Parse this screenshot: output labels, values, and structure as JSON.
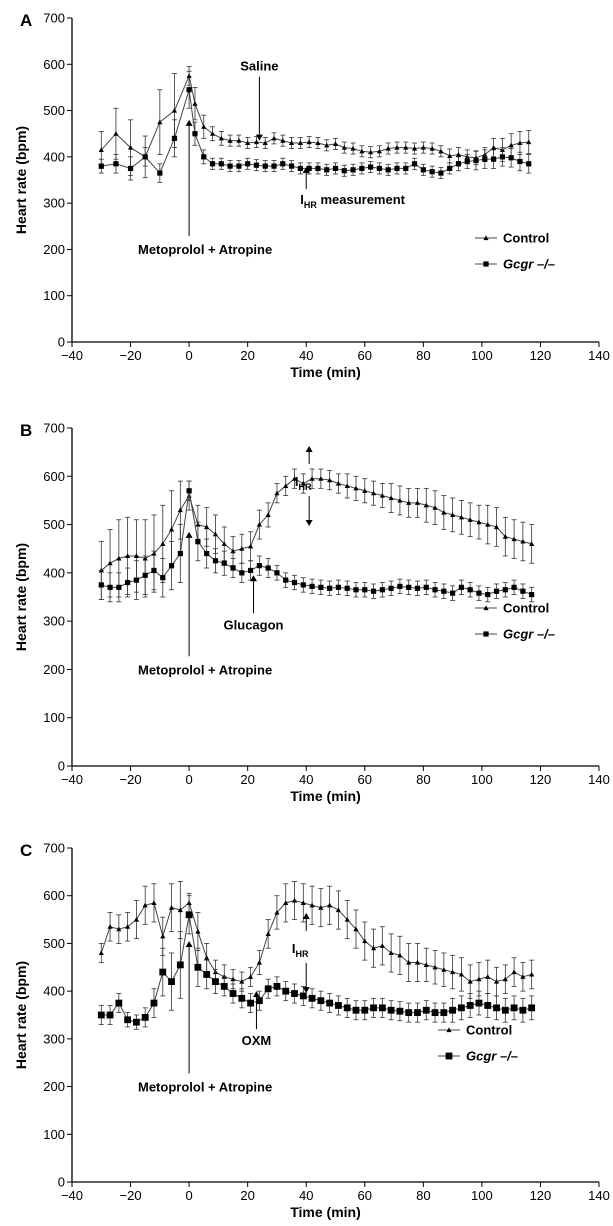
{
  "chart_data": [
    {
      "type": "line",
      "panel_label": "A",
      "xlabel": "Time (min)",
      "ylabel": "Heart rate (bpm)",
      "xlim": [
        -40,
        140
      ],
      "ylim": [
        0,
        700
      ],
      "xticks": [
        -40,
        -20,
        0,
        20,
        40,
        60,
        80,
        100,
        120,
        140
      ],
      "yticks": [
        0,
        100,
        200,
        300,
        400,
        500,
        600,
        700
      ],
      "x_tick_labels": [
        "−40",
        "−20",
        "0",
        "20",
        "40",
        "60",
        "80",
        "100",
        "120",
        "140"
      ],
      "legend_position": "right",
      "annotations": [
        {
          "text": "Saline",
          "x": 24,
          "y": 435,
          "arrow": "down"
        },
        {
          "text": "measurement",
          "x": 40,
          "y": 378,
          "arrow": "up",
          "prefix": "I",
          "sub": "HR"
        },
        {
          "text": "Metoprolol + Atropine",
          "x": 0,
          "y": 480,
          "arrow": "up"
        }
      ],
      "series": [
        {
          "name": "Control",
          "marker": "triangle",
          "x": [
            -30,
            -25,
            -20,
            -15,
            -10,
            -5,
            0,
            2,
            5,
            8,
            11,
            14,
            17,
            20,
            23,
            26,
            29,
            32,
            35,
            38,
            41,
            44,
            47,
            50,
            53,
            56,
            59,
            62,
            65,
            68,
            71,
            74,
            77,
            80,
            83,
            86,
            89,
            92,
            95,
            98,
            101,
            104,
            107,
            110,
            113,
            116
          ],
          "y": [
            415,
            450,
            420,
            400,
            475,
            500,
            575,
            515,
            465,
            450,
            440,
            435,
            435,
            430,
            432,
            430,
            440,
            435,
            430,
            430,
            432,
            430,
            425,
            428,
            420,
            418,
            412,
            410,
            412,
            418,
            420,
            420,
            418,
            420,
            418,
            412,
            402,
            405,
            400,
            398,
            405,
            420,
            415,
            425,
            430,
            432
          ],
          "err": [
            40,
            55,
            60,
            45,
            70,
            80,
            20,
            35,
            25,
            15,
            15,
            12,
            12,
            12,
            12,
            12,
            12,
            12,
            12,
            12,
            12,
            12,
            12,
            12,
            12,
            12,
            12,
            12,
            12,
            12,
            12,
            12,
            12,
            12,
            12,
            12,
            15,
            15,
            15,
            15,
            15,
            20,
            25,
            25,
            25,
            25
          ]
        },
        {
          "name": "Gcgr –/–",
          "marker": "square",
          "x": [
            -30,
            -25,
            -20,
            -15,
            -10,
            -5,
            0,
            2,
            5,
            8,
            11,
            14,
            17,
            20,
            23,
            26,
            29,
            32,
            35,
            38,
            41,
            44,
            47,
            50,
            53,
            56,
            59,
            62,
            65,
            68,
            71,
            74,
            77,
            80,
            83,
            86,
            89,
            92,
            95,
            98,
            101,
            104,
            107,
            110,
            113,
            116
          ],
          "y": [
            380,
            385,
            375,
            400,
            365,
            440,
            545,
            450,
            400,
            385,
            385,
            380,
            380,
            385,
            382,
            380,
            380,
            385,
            380,
            375,
            375,
            375,
            372,
            375,
            370,
            372,
            375,
            378,
            375,
            372,
            375,
            375,
            385,
            372,
            368,
            365,
            375,
            385,
            390,
            392,
            395,
            395,
            400,
            398,
            390,
            385
          ],
          "err": [
            15,
            20,
            25,
            20,
            20,
            40,
            40,
            25,
            15,
            12,
            12,
            12,
            12,
            12,
            12,
            12,
            12,
            12,
            12,
            12,
            12,
            12,
            12,
            12,
            12,
            12,
            12,
            12,
            12,
            12,
            12,
            12,
            12,
            12,
            12,
            12,
            12,
            15,
            15,
            20,
            20,
            20,
            20,
            20,
            20,
            20
          ]
        }
      ],
      "legend": [
        "Control",
        "Gcgr –/–"
      ]
    },
    {
      "type": "line",
      "panel_label": "B",
      "xlabel": "Time (min)",
      "ylabel": "Heart rate (bpm)",
      "xlim": [
        -40,
        140
      ],
      "ylim": [
        0,
        700
      ],
      "xticks": [
        -40,
        -20,
        0,
        20,
        40,
        60,
        80,
        100,
        120,
        140
      ],
      "yticks": [
        0,
        100,
        200,
        300,
        400,
        500,
        600,
        700
      ],
      "x_tick_labels": [
        "−40",
        "−20",
        "0",
        "20",
        "40",
        "60",
        "80",
        "100",
        "120",
        "140"
      ],
      "legend_position": "right",
      "annotations": [
        {
          "text": "",
          "x": 41,
          "y": 580,
          "arrow": "both",
          "prefix": "I",
          "sub": "HR"
        },
        {
          "text": "Glucagon",
          "x": 22,
          "y": 395,
          "arrow": "up"
        },
        {
          "text": "Metoprolol + Atropine",
          "x": 0,
          "y": 485,
          "arrow": "up"
        }
      ],
      "series": [
        {
          "name": "Control",
          "marker": "triangle",
          "x": [
            -30,
            -27,
            -24,
            -21,
            -18,
            -15,
            -12,
            -9,
            -6,
            -3,
            0,
            3,
            6,
            9,
            12,
            15,
            18,
            21,
            24,
            27,
            30,
            33,
            36,
            39,
            42,
            45,
            48,
            51,
            54,
            57,
            60,
            63,
            66,
            69,
            72,
            75,
            78,
            81,
            84,
            87,
            90,
            93,
            96,
            99,
            102,
            105,
            108,
            111,
            114,
            117
          ],
          "y": [
            405,
            420,
            430,
            435,
            435,
            430,
            440,
            460,
            490,
            530,
            560,
            500,
            495,
            480,
            460,
            445,
            450,
            455,
            500,
            520,
            565,
            580,
            595,
            585,
            595,
            595,
            592,
            585,
            580,
            575,
            570,
            565,
            560,
            555,
            550,
            545,
            545,
            540,
            535,
            525,
            520,
            515,
            510,
            505,
            500,
            495,
            475,
            470,
            465,
            460
          ],
          "err": [
            60,
            70,
            80,
            80,
            75,
            80,
            80,
            80,
            80,
            60,
            30,
            40,
            40,
            40,
            35,
            30,
            30,
            30,
            30,
            25,
            20,
            20,
            20,
            20,
            20,
            20,
            20,
            20,
            25,
            25,
            25,
            25,
            25,
            30,
            30,
            30,
            30,
            35,
            35,
            35,
            35,
            35,
            35,
            35,
            40,
            40,
            40,
            40,
            40,
            40
          ]
        },
        {
          "name": "Gcgr –/–",
          "marker": "square",
          "x": [
            -30,
            -27,
            -24,
            -21,
            -18,
            -15,
            -12,
            -9,
            -6,
            -3,
            0,
            3,
            6,
            9,
            12,
            15,
            18,
            21,
            24,
            27,
            30,
            33,
            36,
            39,
            42,
            45,
            48,
            51,
            54,
            57,
            60,
            63,
            66,
            69,
            72,
            75,
            78,
            81,
            84,
            87,
            90,
            93,
            96,
            99,
            102,
            105,
            108,
            111,
            114,
            117
          ],
          "y": [
            375,
            370,
            370,
            380,
            385,
            395,
            405,
            390,
            415,
            440,
            570,
            465,
            440,
            425,
            420,
            410,
            400,
            405,
            415,
            410,
            400,
            385,
            380,
            375,
            372,
            370,
            368,
            370,
            368,
            365,
            365,
            362,
            365,
            368,
            372,
            370,
            368,
            370,
            365,
            362,
            358,
            370,
            365,
            358,
            355,
            362,
            365,
            370,
            362,
            355
          ],
          "err": [
            30,
            30,
            30,
            30,
            40,
            40,
            40,
            40,
            50,
            60,
            20,
            40,
            30,
            25,
            25,
            20,
            20,
            20,
            20,
            20,
            15,
            15,
            15,
            15,
            15,
            15,
            15,
            15,
            15,
            15,
            15,
            15,
            15,
            15,
            15,
            15,
            15,
            15,
            15,
            15,
            15,
            15,
            15,
            15,
            15,
            15,
            15,
            15,
            15,
            15
          ]
        }
      ],
      "legend": [
        "Control",
        "Gcgr –/–"
      ]
    },
    {
      "type": "line",
      "panel_label": "C",
      "xlabel": "Time (min)",
      "ylabel": "Heart rate (bpm)",
      "xlim": [
        -40,
        140
      ],
      "ylim": [
        0,
        700
      ],
      "xticks": [
        -40,
        -20,
        0,
        20,
        40,
        60,
        80,
        100,
        120,
        140
      ],
      "yticks": [
        0,
        100,
        200,
        300,
        400,
        500,
        600,
        700
      ],
      "x_tick_labels": [
        "−40",
        "−20",
        "0",
        "20",
        "40",
        "60",
        "80",
        "100",
        "120",
        "140"
      ],
      "legend_position": "right",
      "annotations": [
        {
          "text": "",
          "x": 40,
          "y": 480,
          "arrow": "both",
          "prefix": "I",
          "sub": "HR"
        },
        {
          "text": "OXM",
          "x": 23,
          "y": 400,
          "arrow": "up"
        },
        {
          "text": "Metoprolol + Atropine",
          "x": 0,
          "y": 505,
          "arrow": "up"
        }
      ],
      "series": [
        {
          "name": "Control",
          "marker": "triangle",
          "x": [
            -30,
            -27,
            -24,
            -21,
            -18,
            -15,
            -12,
            -9,
            -6,
            -3,
            0,
            3,
            6,
            9,
            12,
            15,
            18,
            21,
            24,
            27,
            30,
            33,
            36,
            39,
            42,
            45,
            48,
            51,
            54,
            57,
            60,
            63,
            66,
            69,
            72,
            75,
            78,
            81,
            84,
            87,
            90,
            93,
            96,
            99,
            102,
            105,
            108,
            111,
            114,
            117
          ],
          "y": [
            480,
            535,
            530,
            535,
            550,
            580,
            585,
            515,
            575,
            570,
            585,
            525,
            470,
            440,
            430,
            425,
            420,
            430,
            460,
            520,
            565,
            585,
            590,
            585,
            580,
            575,
            580,
            570,
            550,
            530,
            505,
            490,
            495,
            480,
            475,
            460,
            460,
            455,
            450,
            445,
            440,
            435,
            420,
            425,
            430,
            420,
            425,
            440,
            430,
            435
          ],
          "err": [
            20,
            30,
            30,
            30,
            40,
            40,
            40,
            40,
            50,
            60,
            20,
            40,
            30,
            25,
            25,
            20,
            20,
            20,
            25,
            30,
            35,
            40,
            40,
            40,
            40,
            40,
            40,
            40,
            40,
            40,
            40,
            40,
            40,
            40,
            40,
            40,
            40,
            35,
            35,
            35,
            35,
            35,
            35,
            35,
            35,
            30,
            30,
            30,
            30,
            30
          ]
        },
        {
          "name": "Gcgr –/–",
          "marker": "square",
          "x": [
            -30,
            -27,
            -24,
            -21,
            -18,
            -15,
            -12,
            -9,
            -6,
            -3,
            0,
            3,
            6,
            9,
            12,
            15,
            18,
            21,
            24,
            27,
            30,
            33,
            36,
            39,
            42,
            45,
            48,
            51,
            54,
            57,
            60,
            63,
            66,
            69,
            72,
            75,
            78,
            81,
            84,
            87,
            90,
            93,
            96,
            99,
            102,
            105,
            108,
            111,
            114,
            117
          ],
          "y": [
            350,
            350,
            375,
            340,
            335,
            345,
            375,
            440,
            420,
            455,
            560,
            450,
            435,
            420,
            410,
            395,
            385,
            375,
            380,
            405,
            410,
            400,
            395,
            390,
            385,
            380,
            375,
            370,
            365,
            360,
            360,
            365,
            365,
            360,
            358,
            355,
            355,
            360,
            355,
            355,
            360,
            365,
            370,
            375,
            370,
            365,
            360,
            365,
            360,
            365
          ],
          "err": [
            20,
            20,
            20,
            15,
            15,
            20,
            30,
            50,
            60,
            70,
            40,
            40,
            30,
            25,
            20,
            20,
            20,
            20,
            20,
            20,
            20,
            20,
            20,
            20,
            20,
            20,
            20,
            20,
            20,
            20,
            20,
            20,
            20,
            20,
            20,
            20,
            20,
            20,
            20,
            20,
            25,
            25,
            25,
            25,
            25,
            25,
            25,
            25,
            25,
            25
          ]
        }
      ],
      "legend": [
        "Control",
        "Gcgr –/–"
      ]
    }
  ]
}
